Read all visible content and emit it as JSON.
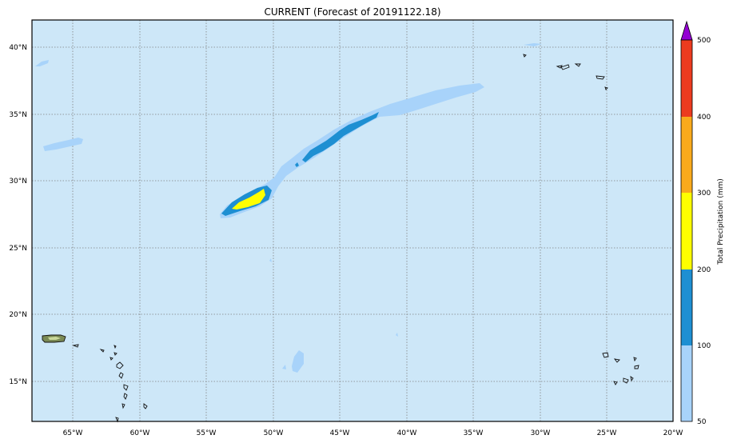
{
  "title": "CURRENT (Forecast of 20191122.18)",
  "map": {
    "background_color": "#cde7f8",
    "lon_ticks": [
      "65°W",
      "60°W",
      "55°W",
      "50°W",
      "45°W",
      "40°W",
      "35°W",
      "30°W",
      "25°W",
      "20°W"
    ],
    "lat_ticks": [
      "40°N",
      "35°N",
      "30°N",
      "25°N",
      "20°N",
      "15°N"
    ],
    "lon_range_deg": [
      -68,
      -20
    ],
    "lat_range_deg": [
      12,
      42
    ],
    "gridlines": "dotted"
  },
  "colorbar": {
    "label": "Total Precipitation (mm)",
    "levels": [
      "50",
      "100",
      "200",
      "300",
      "400",
      "500"
    ],
    "colors": [
      "#a8d3fa",
      "#1e8fd2",
      "#ffff00",
      "#f9aa1c",
      "#ec3b1f"
    ],
    "extend_color": "#9400d3"
  }
}
